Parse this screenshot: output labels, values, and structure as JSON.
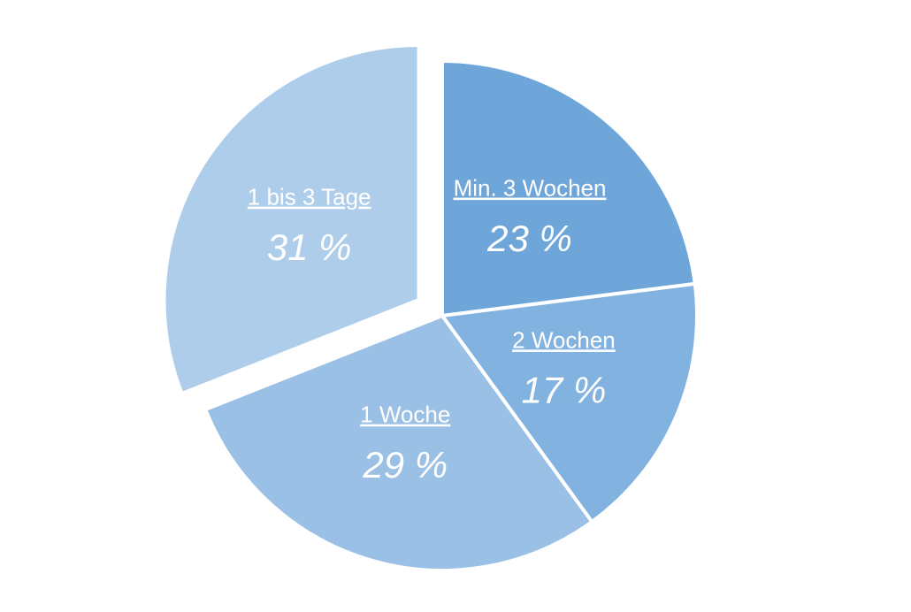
{
  "chart_data": {
    "type": "pie",
    "categories": [
      "Min. 3 Wochen",
      "2 Wochen",
      "1 Woche",
      "1 bis 3 Tage"
    ],
    "values": [
      23,
      17,
      29,
      31
    ],
    "value_labels": [
      "23 %",
      "17 %",
      "29 %",
      "31 %"
    ],
    "colors": [
      "#6ea6d9",
      "#82b2e0",
      "#9bc0e5",
      "#aecdea"
    ],
    "exploded": [
      false,
      false,
      false,
      true
    ]
  }
}
